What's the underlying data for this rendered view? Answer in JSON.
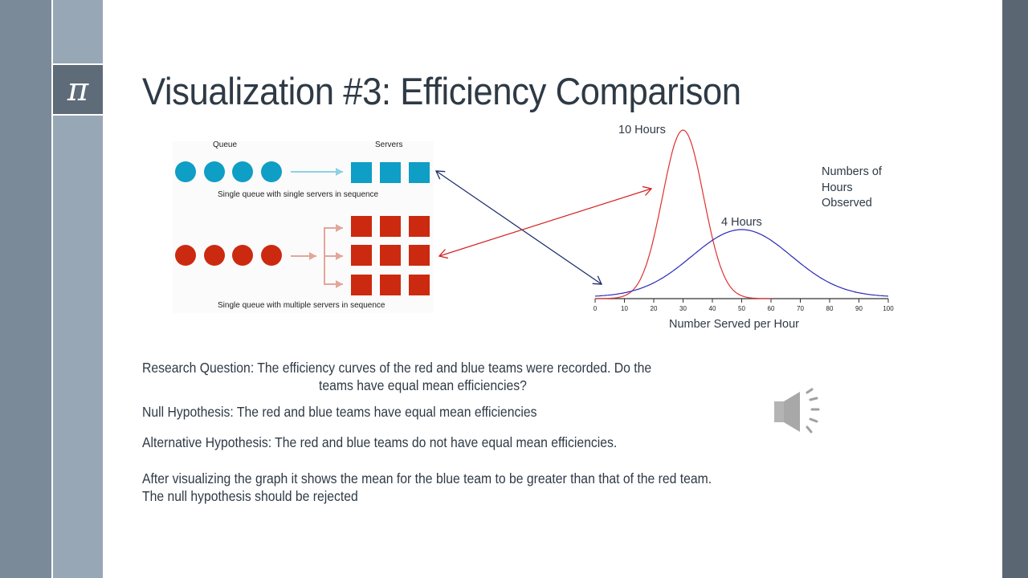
{
  "slide": {
    "title": "Visualization #3: Efficiency Comparison",
    "logo_glyph": "π",
    "icons": {
      "logo": "pi-icon",
      "audio": "speaker-icon"
    }
  },
  "queue_diagram": {
    "queue_label": "Queue",
    "servers_label": "Servers",
    "top_caption": "Single queue with single servers in sequence",
    "bottom_caption": "Single queue with multiple servers in sequence",
    "colors": {
      "blue_team": "#0f9ec5",
      "red_team": "#cc2a10"
    }
  },
  "chart_data": {
    "type": "line",
    "title": "",
    "xlabel": "Number Served per Hour",
    "ylabel": "Numbers of Hours Observed",
    "xlim": [
      0,
      100
    ],
    "x_ticks": [
      0,
      10,
      20,
      30,
      40,
      50,
      60,
      70,
      80,
      90,
      100
    ],
    "grid": false,
    "series": [
      {
        "name": "10 Hours",
        "color": "#e03030",
        "distribution": "normal",
        "mean": 30,
        "sd": 7,
        "peak": 10
      },
      {
        "name": "4 Hours",
        "color": "#2a2ab8",
        "distribution": "normal",
        "mean": 50,
        "sd": 17,
        "peak": 4
      }
    ],
    "annotations": [
      "10 Hours",
      "4 Hours",
      "Numbers of Hours Observed"
    ]
  },
  "chart": {
    "red_peak_label": "10 Hours",
    "blue_peak_label": "4 Hours",
    "ylabel_line1": "Numbers of",
    "ylabel_line2": "Hours",
    "ylabel_line3": "Observed",
    "xlabel": "Number Served per Hour",
    "ticks": [
      "0",
      "10",
      "20",
      "30",
      "40",
      "50",
      "60",
      "70",
      "80",
      "90",
      "100"
    ]
  },
  "text": {
    "research_question_line1": "Research Question: The efficiency curves of the red and blue teams were recorded.  Do the",
    "research_question_line2": "teams have equal mean efficiencies?",
    "null_hypothesis": "Null Hypothesis: The red and blue teams have equal mean efficiencies",
    "alternative_hypothesis": "Alternative Hypothesis: The red and blue teams do not have equal mean efficiencies.",
    "conclusion_line1": "After visualizing the graph it shows the mean for the blue team to be greater than that of the red team.",
    "conclusion_line2": "The null hypothesis should be rejected"
  }
}
